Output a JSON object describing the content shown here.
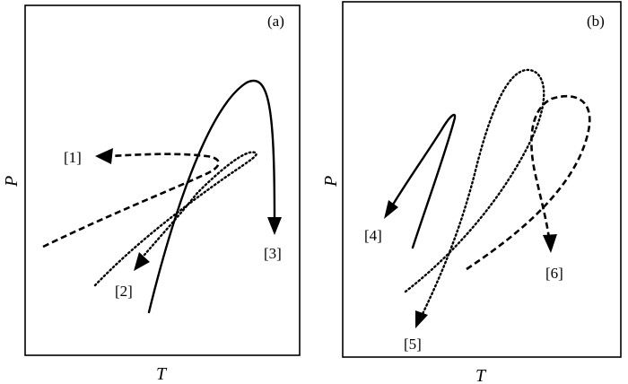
{
  "panel_a": {
    "label": "(a)",
    "curves": [
      {
        "id": "1",
        "label": "[1]",
        "style": "dashed"
      },
      {
        "id": "2",
        "label": "[2]",
        "style": "dotted"
      },
      {
        "id": "3",
        "label": "[3]",
        "style": "solid"
      }
    ],
    "x_axis": "T",
    "y_axis": "P"
  },
  "panel_b": {
    "label": "(b)",
    "curves": [
      {
        "id": "4",
        "label": "[4]",
        "style": "solid"
      },
      {
        "id": "5",
        "label": "[5]",
        "style": "dotted"
      },
      {
        "id": "6",
        "label": "[6]",
        "style": "dashed"
      }
    ],
    "x_axis": "T",
    "y_axis": "P"
  }
}
